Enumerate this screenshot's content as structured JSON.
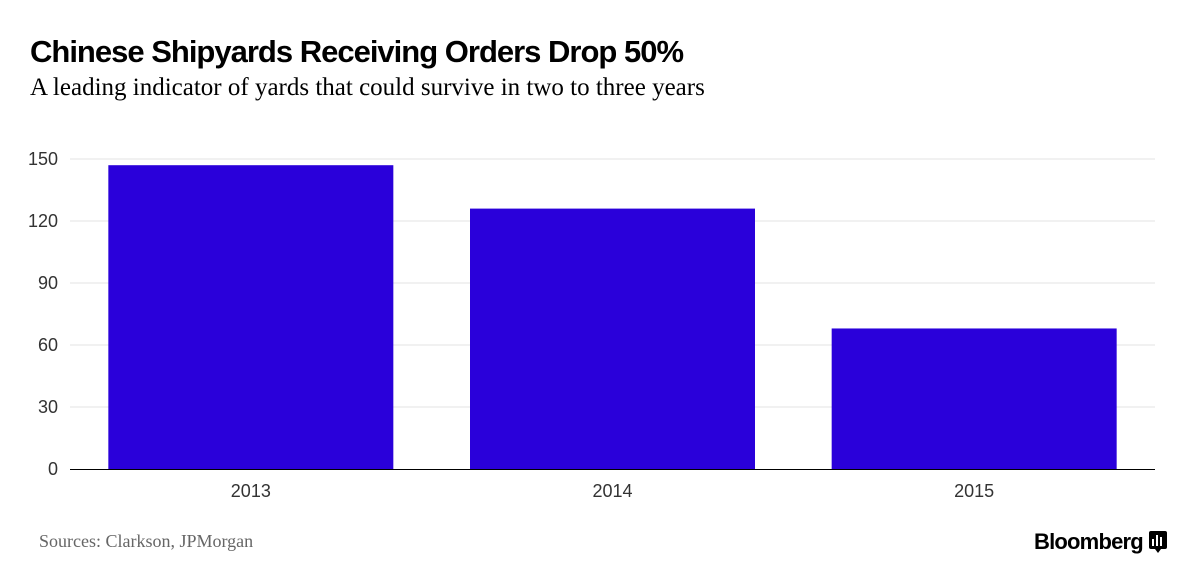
{
  "chart_data": {
    "type": "bar",
    "title": "Chinese Shipyards Receiving Orders Drop 50%",
    "subtitle": "A leading indicator of yards that could survive in two to three years",
    "categories": [
      "2013",
      "2014",
      "2015"
    ],
    "values": [
      147,
      126,
      68
    ],
    "ylim": [
      0,
      150
    ],
    "yticks": [
      "0",
      "30",
      "60",
      "90",
      "120",
      "150"
    ],
    "grid": true,
    "bar_color": "#2a00da",
    "source": "Sources: Clarkson, JPMorgan"
  },
  "brand": {
    "name": "Bloomberg",
    "icon": "bloomberg-logo-icon"
  }
}
